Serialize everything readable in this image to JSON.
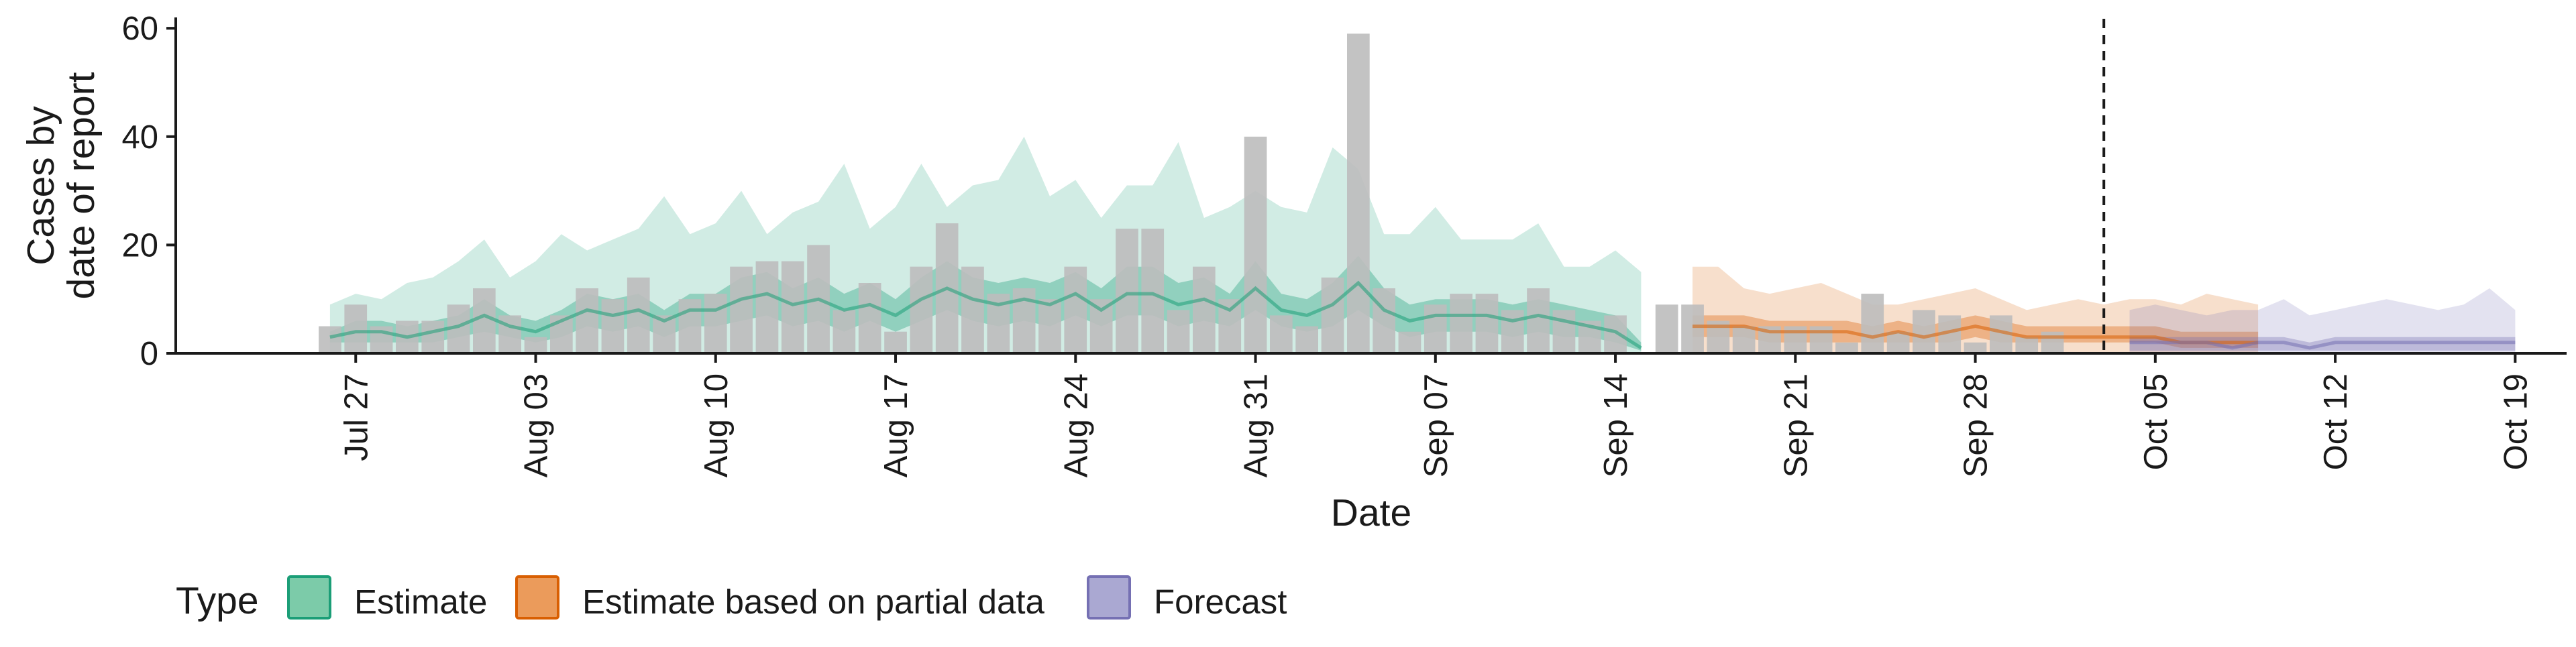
{
  "chart_data": {
    "type": "bar+area",
    "ylabel": "Cases by\ndate of report",
    "xlabel": "Date",
    "ylim": [
      0,
      62
    ],
    "yticks": [
      0,
      20,
      40,
      60
    ],
    "x_start_date": "2020-07-20",
    "x_end_date": "2020-10-21",
    "xticks": [
      {
        "date": "2020-07-27",
        "label": "Jul 27"
      },
      {
        "date": "2020-08-03",
        "label": "Aug 03"
      },
      {
        "date": "2020-08-10",
        "label": "Aug 10"
      },
      {
        "date": "2020-08-17",
        "label": "Aug 17"
      },
      {
        "date": "2020-08-24",
        "label": "Aug 24"
      },
      {
        "date": "2020-08-31",
        "label": "Aug 31"
      },
      {
        "date": "2020-09-07",
        "label": "Sep 07"
      },
      {
        "date": "2020-09-14",
        "label": "Sep 14"
      },
      {
        "date": "2020-09-21",
        "label": "Sep 21"
      },
      {
        "date": "2020-09-28",
        "label": "Sep 28"
      },
      {
        "date": "2020-10-05",
        "label": "Oct 05"
      },
      {
        "date": "2020-10-12",
        "label": "Oct 12"
      },
      {
        "date": "2020-10-19",
        "label": "Oct 19"
      }
    ],
    "vline_date": "2020-10-03",
    "grid": false,
    "legend": {
      "title": "Type",
      "position": "bottom-left",
      "entries": [
        {
          "label": "Estimate",
          "fill": "#7ccba9",
          "stroke": "#1b9e77"
        },
        {
          "label": "Estimate based on partial data",
          "fill": "#eb9b5b",
          "stroke": "#d95f02"
        },
        {
          "label": "Forecast",
          "fill": "#aaa8d2",
          "stroke": "#7570b3"
        }
      ]
    },
    "colors": {
      "bars": "#bdbdbd",
      "estimate": "#1b9e77",
      "partial": "#d95f02",
      "forecast": "#7570b3",
      "vline": "#1a1a1a"
    },
    "reported_cases": {
      "start_date": "2020-07-26",
      "values": [
        5,
        9,
        5,
        6,
        6,
        9,
        12,
        7,
        3,
        7,
        12,
        10,
        14,
        7,
        10,
        11,
        16,
        17,
        17,
        20,
        8,
        13,
        4,
        16,
        24,
        16,
        11,
        12,
        10,
        16,
        10,
        23,
        23,
        8,
        16,
        10,
        40,
        7,
        5,
        14,
        59,
        12,
        4,
        9,
        11,
        11,
        8,
        12,
        8,
        6,
        7,
        0,
        9,
        9,
        6,
        5,
        5,
        5,
        5,
        2,
        11,
        4,
        8,
        7,
        2,
        7,
        3,
        4
      ]
    },
    "estimate": {
      "start_date": "2020-07-26",
      "median": [
        3,
        4,
        4,
        3,
        4,
        5,
        7,
        5,
        4,
        6,
        8,
        7,
        8,
        6,
        8,
        8,
        10,
        11,
        9,
        10,
        8,
        9,
        7,
        10,
        12,
        10,
        9,
        10,
        9,
        11,
        8,
        11,
        11,
        9,
        10,
        8,
        12,
        8,
        7,
        9,
        13,
        8,
        6,
        7,
        7,
        7,
        6,
        7,
        6,
        5,
        4,
        1
      ],
      "lower50": [
        2,
        2,
        2,
        2,
        2,
        3,
        4,
        3,
        2,
        3,
        5,
        4,
        5,
        3,
        5,
        5,
        6,
        7,
        5,
        6,
        4,
        6,
        4,
        6,
        8,
        6,
        5,
        6,
        5,
        7,
        5,
        7,
        7,
        5,
        6,
        5,
        8,
        5,
        4,
        5,
        8,
        5,
        3,
        4,
        4,
        4,
        3,
        4,
        3,
        3,
        2,
        0.5
      ],
      "upper50": [
        4,
        6,
        6,
        5,
        6,
        7,
        10,
        7,
        6,
        8,
        11,
        10,
        11,
        8,
        11,
        11,
        14,
        15,
        12,
        14,
        11,
        13,
        10,
        14,
        17,
        14,
        13,
        14,
        13,
        15,
        12,
        16,
        16,
        13,
        14,
        11,
        17,
        11,
        10,
        13,
        18,
        12,
        9,
        10,
        10,
        10,
        9,
        10,
        9,
        8,
        7,
        2
      ],
      "lower90": [
        0,
        0,
        0,
        0,
        0,
        0,
        0,
        0,
        0,
        0,
        0,
        0,
        0,
        0,
        0,
        0,
        0,
        0,
        0,
        0,
        0,
        0,
        0,
        0,
        0,
        0,
        0,
        0,
        0,
        0,
        0,
        0,
        0,
        0,
        0,
        0,
        0,
        0,
        0,
        0,
        0,
        0,
        0,
        0,
        0,
        0,
        0,
        0,
        0,
        0,
        0,
        0
      ],
      "upper90": [
        9,
        11,
        10,
        13,
        14,
        17,
        21,
        14,
        17,
        22,
        19,
        21,
        23,
        29,
        22,
        24,
        30,
        22,
        26,
        28,
        35,
        23,
        27,
        35,
        27,
        31,
        32,
        40,
        29,
        32,
        25,
        31,
        31,
        39,
        25,
        27,
        30,
        27,
        26,
        38,
        34,
        22,
        22,
        27,
        21,
        21,
        21,
        24,
        16,
        16,
        19,
        15
      ]
    },
    "partial": {
      "start_date": "2020-09-17",
      "median": [
        5,
        5,
        5,
        4,
        4,
        4,
        4,
        3,
        4,
        3,
        4,
        5,
        4,
        3,
        3,
        3,
        3,
        3,
        3,
        2,
        2,
        2,
        2
      ],
      "lower50": [
        3,
        3,
        3,
        2,
        2,
        2,
        2,
        2,
        2,
        2,
        2,
        3,
        2,
        2,
        2,
        2,
        2,
        2,
        2,
        1,
        1,
        1,
        1
      ],
      "upper50": [
        7,
        7,
        7,
        6,
        6,
        6,
        6,
        5,
        6,
        5,
        6,
        7,
        6,
        5,
        5,
        5,
        5,
        5,
        5,
        4,
        4,
        4,
        4
      ],
      "lower90": [
        0,
        0,
        0,
        0,
        0,
        0,
        0,
        0,
        0,
        0,
        0,
        0,
        0,
        0,
        0,
        0,
        0,
        0,
        0,
        0,
        0,
        0,
        0
      ],
      "upper90": [
        16,
        16,
        12,
        11,
        12,
        13,
        11,
        9,
        9,
        10,
        11,
        12,
        10,
        8,
        9,
        10,
        9,
        10,
        10,
        9,
        11,
        10,
        9
      ]
    },
    "forecast": {
      "start_date": "2020-10-04",
      "median": [
        2,
        2,
        2,
        2,
        1,
        2,
        2,
        1,
        2,
        2,
        2,
        2,
        2,
        2,
        2,
        2
      ],
      "lower50": [
        0.5,
        0.5,
        0.5,
        0.5,
        0.5,
        0.5,
        0.5,
        0.5,
        0.5,
        0.5,
        0.5,
        0.5,
        0.5,
        0.5,
        0.5,
        0.5
      ],
      "upper50": [
        3,
        3,
        3,
        3,
        3,
        3,
        3,
        2,
        3,
        3,
        3,
        3,
        3,
        3,
        3,
        3
      ],
      "lower90": [
        0,
        0,
        0,
        0,
        0,
        0,
        0,
        0,
        0,
        0,
        0,
        0,
        0,
        0,
        0,
        0
      ],
      "upper90": [
        8,
        9,
        8,
        7,
        8,
        8,
        10,
        7,
        8,
        9,
        10,
        9,
        8,
        9,
        12,
        8
      ]
    }
  }
}
